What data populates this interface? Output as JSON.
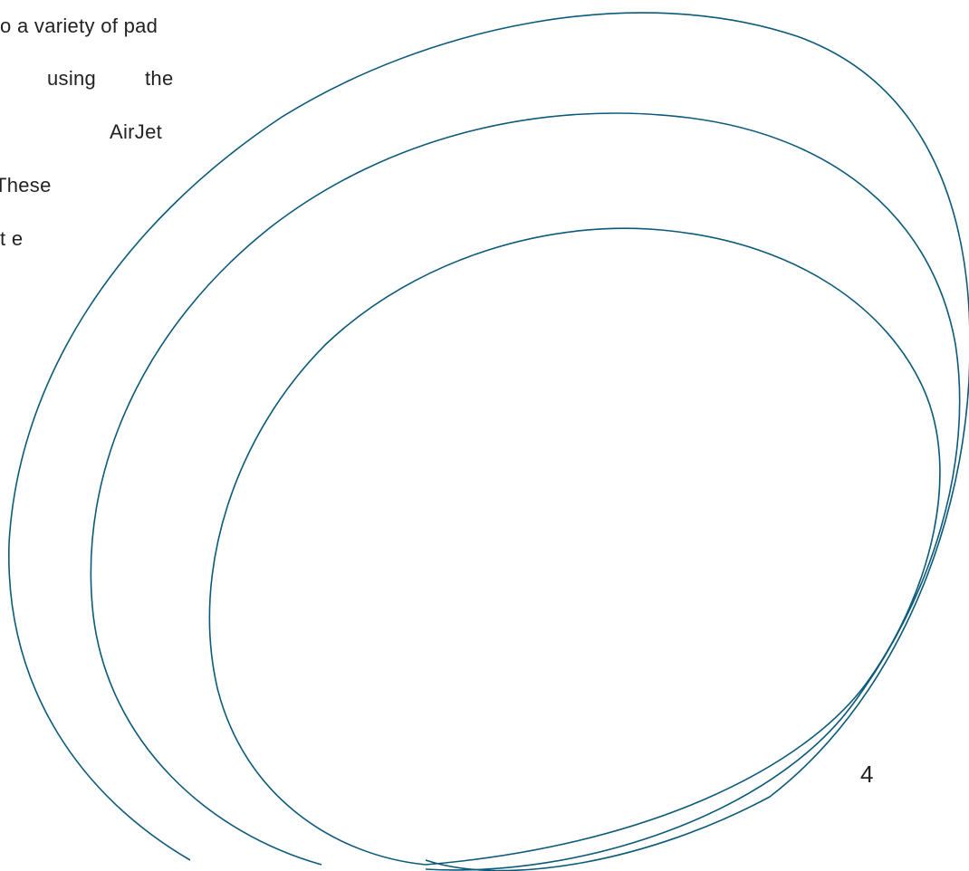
{
  "body_text": {
    "lines": [
      "o a variety of pad",
      "using",
      "AirJet",
      "These",
      "t e"
    ],
    "line_1_tail": "the"
  },
  "page_number": "4",
  "colors": {
    "decor_stroke": "#0b5a7a",
    "text": "#222222",
    "background": "#ffffff"
  },
  "decor": {
    "icon": "concentric-ellipse-swooshes"
  }
}
